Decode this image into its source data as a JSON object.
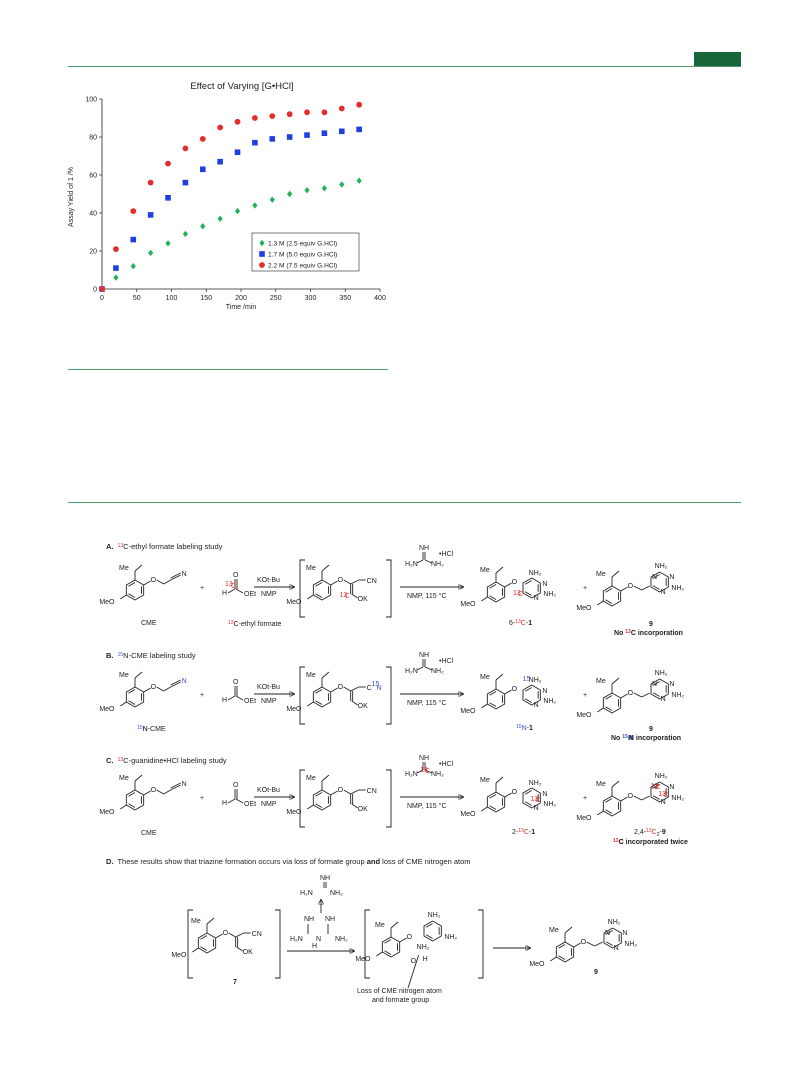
{
  "chart_data": {
    "type": "scatter",
    "title": "Effect of Varying [G•HCl]",
    "xlabel": "Time /min",
    "ylabel": "Assay Yield of 1 /%",
    "xlim": [
      0,
      400
    ],
    "ylim": [
      0,
      100
    ],
    "xticks": [
      0,
      50,
      100,
      150,
      200,
      250,
      300,
      350,
      400
    ],
    "yticks": [
      0,
      20,
      40,
      60,
      80,
      100
    ],
    "grid": false,
    "legend_position": "bottom-right",
    "series": [
      {
        "name": "1.3 M (2.5 equiv G.HCl)",
        "color": "#21b35a",
        "marker": "diamond",
        "x": [
          0,
          20,
          45,
          70,
          95,
          120,
          145,
          170,
          195,
          220,
          245,
          270,
          295,
          320,
          345,
          370
        ],
        "y": [
          0,
          6,
          12,
          19,
          24,
          29,
          33,
          37,
          41,
          44,
          47,
          50,
          52,
          53,
          55,
          57
        ]
      },
      {
        "name": "1.7 M (5.0 equiv G.HCl)",
        "color": "#1f3fe0",
        "marker": "square",
        "x": [
          0,
          20,
          45,
          70,
          95,
          120,
          145,
          170,
          195,
          220,
          245,
          270,
          295,
          320,
          345,
          370
        ],
        "y": [
          0,
          11,
          26,
          39,
          48,
          56,
          63,
          67,
          72,
          77,
          79,
          80,
          81,
          82,
          83,
          84
        ]
      },
      {
        "name": "2.2 M (7.5 equiv G.HCl)",
        "color": "#e52d2d",
        "marker": "circle",
        "x": [
          0,
          20,
          45,
          70,
          95,
          120,
          145,
          170,
          195,
          220,
          245,
          270,
          295,
          320,
          345,
          370
        ],
        "y": [
          0,
          21,
          41,
          56,
          66,
          74,
          79,
          85,
          88,
          90,
          91,
          92,
          93,
          93,
          95,
          97
        ]
      }
    ]
  },
  "scheme": {
    "sectionA": {
      "letter": "A.",
      "iso": "13",
      "rest": "C-ethyl formate labeling study"
    },
    "sectionB": {
      "letter": "B.",
      "iso": "15",
      "rest": "N-CME labeling study"
    },
    "sectionC": {
      "letter": "C.",
      "iso": "13",
      "rest": "C-guanidine•HCl labeling study"
    },
    "sectionD": {
      "letter": "D.",
      "pre": "These results show that triazine formation occurs via loss of formate group ",
      "and": "and",
      "post": " loss of CME nitrogen atom"
    },
    "cme": "CME",
    "cme_15n": "N-CME",
    "formate_label": "C-ethyl formate",
    "base": "KOt-Bu",
    "solvent": "NMP",
    "conditions": "NMP, 115 °C",
    "hcl": "•HCl",
    "plus": "+",
    "prodA": "6-",
    "prodB_tail": "N-",
    "prodC": "2-",
    "one": "1",
    "nine": "9",
    "no13c": "No ",
    "no13c_tail": "C incorporation",
    "no15n_tail": "N incorporation",
    "label24": "2,4-",
    "c2": "C",
    "twice": "C incorporated twice",
    "seven": "7",
    "loss1": "Loss of CME nitrogen atom",
    "loss2": "and formate group",
    "me": "Me",
    "meo": "MeO",
    "nh2": "NH₂",
    "ok": "OK",
    "oet": "OEt",
    "cn": "CN",
    "iso13": "13",
    "iso15": "15"
  }
}
